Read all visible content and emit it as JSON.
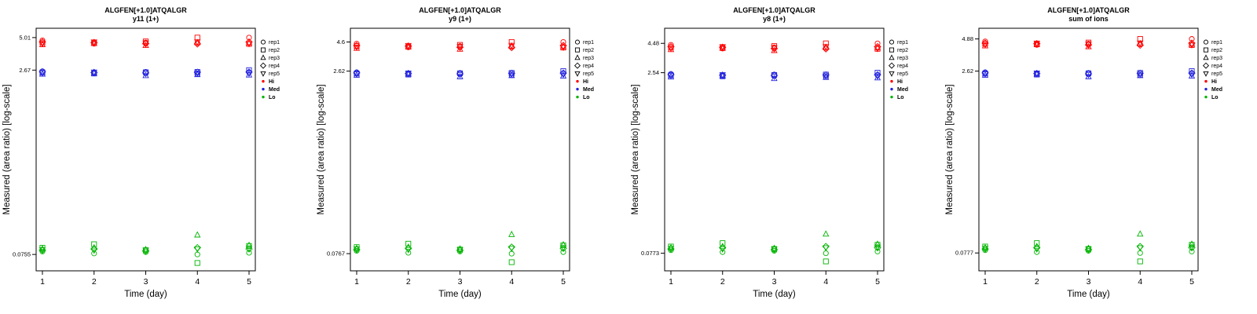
{
  "figure": {
    "background": "#ffffff",
    "panel_count": 4
  },
  "chart_data": {
    "type": "scatter",
    "log_scale": true,
    "shared": {
      "title": "ALGFEN[+1.0]ATQALGR",
      "ylabel": "Measured (area ratio) [log-scale]",
      "xlabel": "Time (day)",
      "x_ticks": [
        "1",
        "2",
        "3",
        "4",
        "5"
      ],
      "x_values": [
        1,
        2,
        3,
        4,
        5
      ],
      "y_range": [
        0.055,
        6.0
      ],
      "grid": false,
      "legend_position": "right",
      "legend_reps": [
        {
          "label": "rep1",
          "symbol": "circle"
        },
        {
          "label": "rep2",
          "symbol": "square"
        },
        {
          "label": "rep3",
          "symbol": "triangle"
        },
        {
          "label": "rep4",
          "symbol": "diamond"
        },
        {
          "label": "rep5",
          "symbol": "triangle-down"
        }
      ],
      "legend_levels": [
        {
          "label": "Hi",
          "color": "#ff0000"
        },
        {
          "label": "Med",
          "color": "#2222dd"
        },
        {
          "label": "Lo",
          "color": "#00b400"
        }
      ]
    },
    "panels": [
      {
        "subtitle": "y11 (1+)",
        "y_ticks": [
          {
            "value": 5.01,
            "label": "5.01"
          },
          {
            "value": 2.67,
            "label": "2.67"
          },
          {
            "value": 0.0755,
            "label": "0.0755"
          }
        ],
        "series": {
          "Hi": [
            [
              4.75,
              4.45,
              4.55,
              4.5,
              5.01
            ],
            [
              4.55,
              4.5,
              4.65,
              5.01,
              4.43
            ],
            [
              4.37,
              4.47,
              4.3,
              4.55,
              4.5
            ],
            [
              4.6,
              4.55,
              4.45,
              4.43,
              4.6
            ],
            [
              4.47,
              4.6,
              4.51,
              4.61,
              4.46
            ]
          ],
          "Med": [
            [
              2.61,
              2.53,
              2.58,
              2.47,
              2.55
            ],
            [
              2.55,
              2.5,
              2.56,
              2.58,
              2.67
            ],
            [
              2.47,
              2.52,
              2.4,
              2.45,
              2.43
            ],
            [
              2.58,
              2.55,
              2.53,
              2.56,
              2.57
            ],
            [
              2.53,
              2.57,
              2.5,
              2.52,
              2.51
            ]
          ],
          "Lo": [
            [
              0.08,
              0.077,
              0.079,
              0.0755,
              0.078
            ],
            [
              0.086,
              0.092,
              0.082,
              0.064,
              0.089
            ],
            [
              0.084,
              0.086,
              0.083,
              0.11,
              0.09
            ],
            [
              0.082,
              0.084,
              0.081,
              0.086,
              0.084
            ],
            [
              0.083,
              0.082,
              0.082,
              0.084,
              0.085
            ]
          ]
        }
      },
      {
        "subtitle": "y9 (1+)",
        "y_ticks": [
          {
            "value": 4.6,
            "label": "4.6"
          },
          {
            "value": 2.62,
            "label": "2.62"
          },
          {
            "value": 0.0767,
            "label": "0.0767"
          }
        ],
        "series": {
          "Hi": [
            [
              4.45,
              4.15,
              4.25,
              4.2,
              4.6
            ],
            [
              4.25,
              4.2,
              4.35,
              4.6,
              4.13
            ],
            [
              4.07,
              4.17,
              4.0,
              4.25,
              4.2
            ],
            [
              4.3,
              4.25,
              4.15,
              4.13,
              4.3
            ],
            [
              4.17,
              4.3,
              4.21,
              4.31,
              4.16
            ]
          ],
          "Med": [
            [
              2.56,
              2.48,
              2.53,
              2.42,
              2.5
            ],
            [
              2.5,
              2.45,
              2.51,
              2.53,
              2.62
            ],
            [
              2.42,
              2.47,
              2.35,
              2.4,
              2.38
            ],
            [
              2.53,
              2.5,
              2.48,
              2.51,
              2.52
            ],
            [
              2.48,
              2.52,
              2.45,
              2.47,
              2.46
            ]
          ],
          "Lo": [
            [
              0.081,
              0.078,
              0.08,
              0.0767,
              0.079
            ],
            [
              0.087,
              0.093,
              0.083,
              0.065,
              0.09
            ],
            [
              0.085,
              0.087,
              0.084,
              0.111,
              0.091
            ],
            [
              0.083,
              0.085,
              0.082,
              0.087,
              0.085
            ],
            [
              0.084,
              0.083,
              0.083,
              0.085,
              0.086
            ]
          ]
        }
      },
      {
        "subtitle": "y8 (1+)",
        "y_ticks": [
          {
            "value": 4.48,
            "label": "4.48"
          },
          {
            "value": 2.54,
            "label": "2.54"
          },
          {
            "value": 0.0773,
            "label": "0.0773"
          }
        ],
        "series": {
          "Hi": [
            [
              4.35,
              4.05,
              4.15,
              4.1,
              4.48
            ],
            [
              4.15,
              4.1,
              4.25,
              4.48,
              4.03
            ],
            [
              3.97,
              4.07,
              3.9,
              4.15,
              4.1
            ],
            [
              4.2,
              4.15,
              4.05,
              4.03,
              4.2
            ],
            [
              4.07,
              4.2,
              4.11,
              4.21,
              4.06
            ]
          ],
          "Med": [
            [
              2.48,
              2.4,
              2.45,
              2.34,
              2.42
            ],
            [
              2.42,
              2.37,
              2.43,
              2.45,
              2.54
            ],
            [
              2.34,
              2.39,
              2.27,
              2.32,
              2.3
            ],
            [
              2.45,
              2.42,
              2.4,
              2.43,
              2.44
            ],
            [
              2.4,
              2.44,
              2.37,
              2.39,
              2.38
            ]
          ],
          "Lo": [
            [
              0.082,
              0.079,
              0.081,
              0.0773,
              0.08
            ],
            [
              0.088,
              0.094,
              0.084,
              0.066,
              0.091
            ],
            [
              0.086,
              0.088,
              0.085,
              0.112,
              0.092
            ],
            [
              0.084,
              0.086,
              0.083,
              0.088,
              0.086
            ],
            [
              0.085,
              0.084,
              0.084,
              0.086,
              0.087
            ]
          ]
        }
      },
      {
        "subtitle": "sum of ions",
        "y_ticks": [
          {
            "value": 4.88,
            "label": "4.88"
          },
          {
            "value": 2.62,
            "label": "2.62"
          },
          {
            "value": 0.0777,
            "label": "0.0777"
          }
        ],
        "series": {
          "Hi": [
            [
              4.65,
              4.35,
              4.45,
              4.4,
              4.88
            ],
            [
              4.45,
              4.4,
              4.55,
              4.88,
              4.33
            ],
            [
              4.27,
              4.37,
              4.2,
              4.45,
              4.4
            ],
            [
              4.5,
              4.45,
              4.35,
              4.33,
              4.5
            ],
            [
              4.37,
              4.5,
              4.41,
              4.51,
              4.36
            ]
          ],
          "Med": [
            [
              2.56,
              2.48,
              2.53,
              2.42,
              2.5
            ],
            [
              2.5,
              2.45,
              2.51,
              2.53,
              2.62
            ],
            [
              2.42,
              2.47,
              2.35,
              2.4,
              2.38
            ],
            [
              2.53,
              2.5,
              2.48,
              2.51,
              2.52
            ],
            [
              2.48,
              2.52,
              2.45,
              2.47,
              2.46
            ]
          ],
          "Lo": [
            [
              0.082,
              0.079,
              0.081,
              0.0777,
              0.08
            ],
            [
              0.088,
              0.094,
              0.084,
              0.066,
              0.091
            ],
            [
              0.086,
              0.088,
              0.085,
              0.112,
              0.092
            ],
            [
              0.084,
              0.086,
              0.083,
              0.088,
              0.086
            ],
            [
              0.085,
              0.084,
              0.084,
              0.086,
              0.087
            ]
          ]
        }
      }
    ]
  }
}
